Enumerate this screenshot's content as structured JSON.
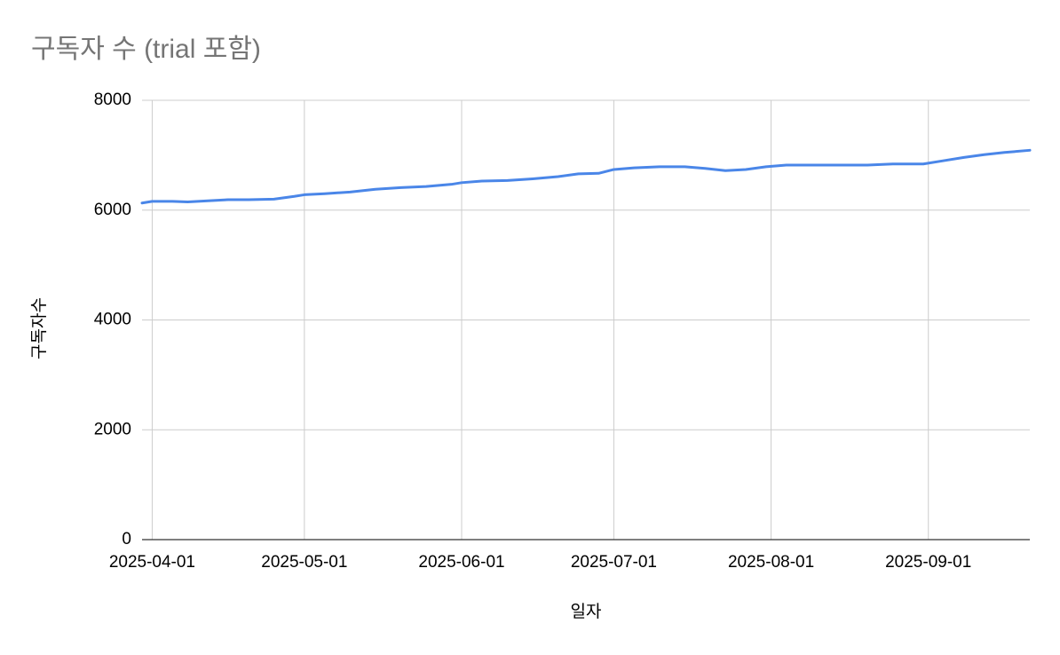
{
  "chart_data": {
    "type": "line",
    "title": "구독자 수 (trial 포함)",
    "x_label": "일자",
    "y_label": "구독자수",
    "x": [
      "2025-03-30",
      "2025-04-01",
      "2025-04-05",
      "2025-04-08",
      "2025-04-12",
      "2025-04-16",
      "2025-04-20",
      "2025-04-25",
      "2025-04-29",
      "2025-05-01",
      "2025-05-05",
      "2025-05-10",
      "2025-05-15",
      "2025-05-20",
      "2025-05-25",
      "2025-05-30",
      "2025-06-01",
      "2025-06-05",
      "2025-06-10",
      "2025-06-15",
      "2025-06-20",
      "2025-06-24",
      "2025-06-28",
      "2025-07-01",
      "2025-07-05",
      "2025-07-10",
      "2025-07-15",
      "2025-07-19",
      "2025-07-23",
      "2025-07-27",
      "2025-07-31",
      "2025-08-04",
      "2025-08-10",
      "2025-08-15",
      "2025-08-20",
      "2025-08-25",
      "2025-08-31",
      "2025-09-04",
      "2025-09-08",
      "2025-09-12",
      "2025-09-16",
      "2025-09-21"
    ],
    "series": [
      {
        "name": "구독자수",
        "color": "#4a86e8",
        "values": [
          6130,
          6160,
          6160,
          6150,
          6170,
          6190,
          6190,
          6200,
          6250,
          6280,
          6300,
          6330,
          6380,
          6410,
          6430,
          6470,
          6500,
          6530,
          6540,
          6570,
          6610,
          6660,
          6670,
          6740,
          6770,
          6790,
          6790,
          6760,
          6720,
          6740,
          6790,
          6820,
          6820,
          6820,
          6820,
          6840,
          6840,
          6900,
          6960,
          7010,
          7050,
          7090
        ]
      }
    ],
    "xlim": [
      "2025-03-30",
      "2025-09-21"
    ],
    "xticks": [
      "2025-04-01",
      "2025-05-01",
      "2025-06-01",
      "2025-07-01",
      "2025-08-01",
      "2025-09-01"
    ],
    "ylim": [
      0,
      8000
    ],
    "yticks": [
      0,
      2000,
      4000,
      6000,
      8000
    ],
    "grid": true
  }
}
